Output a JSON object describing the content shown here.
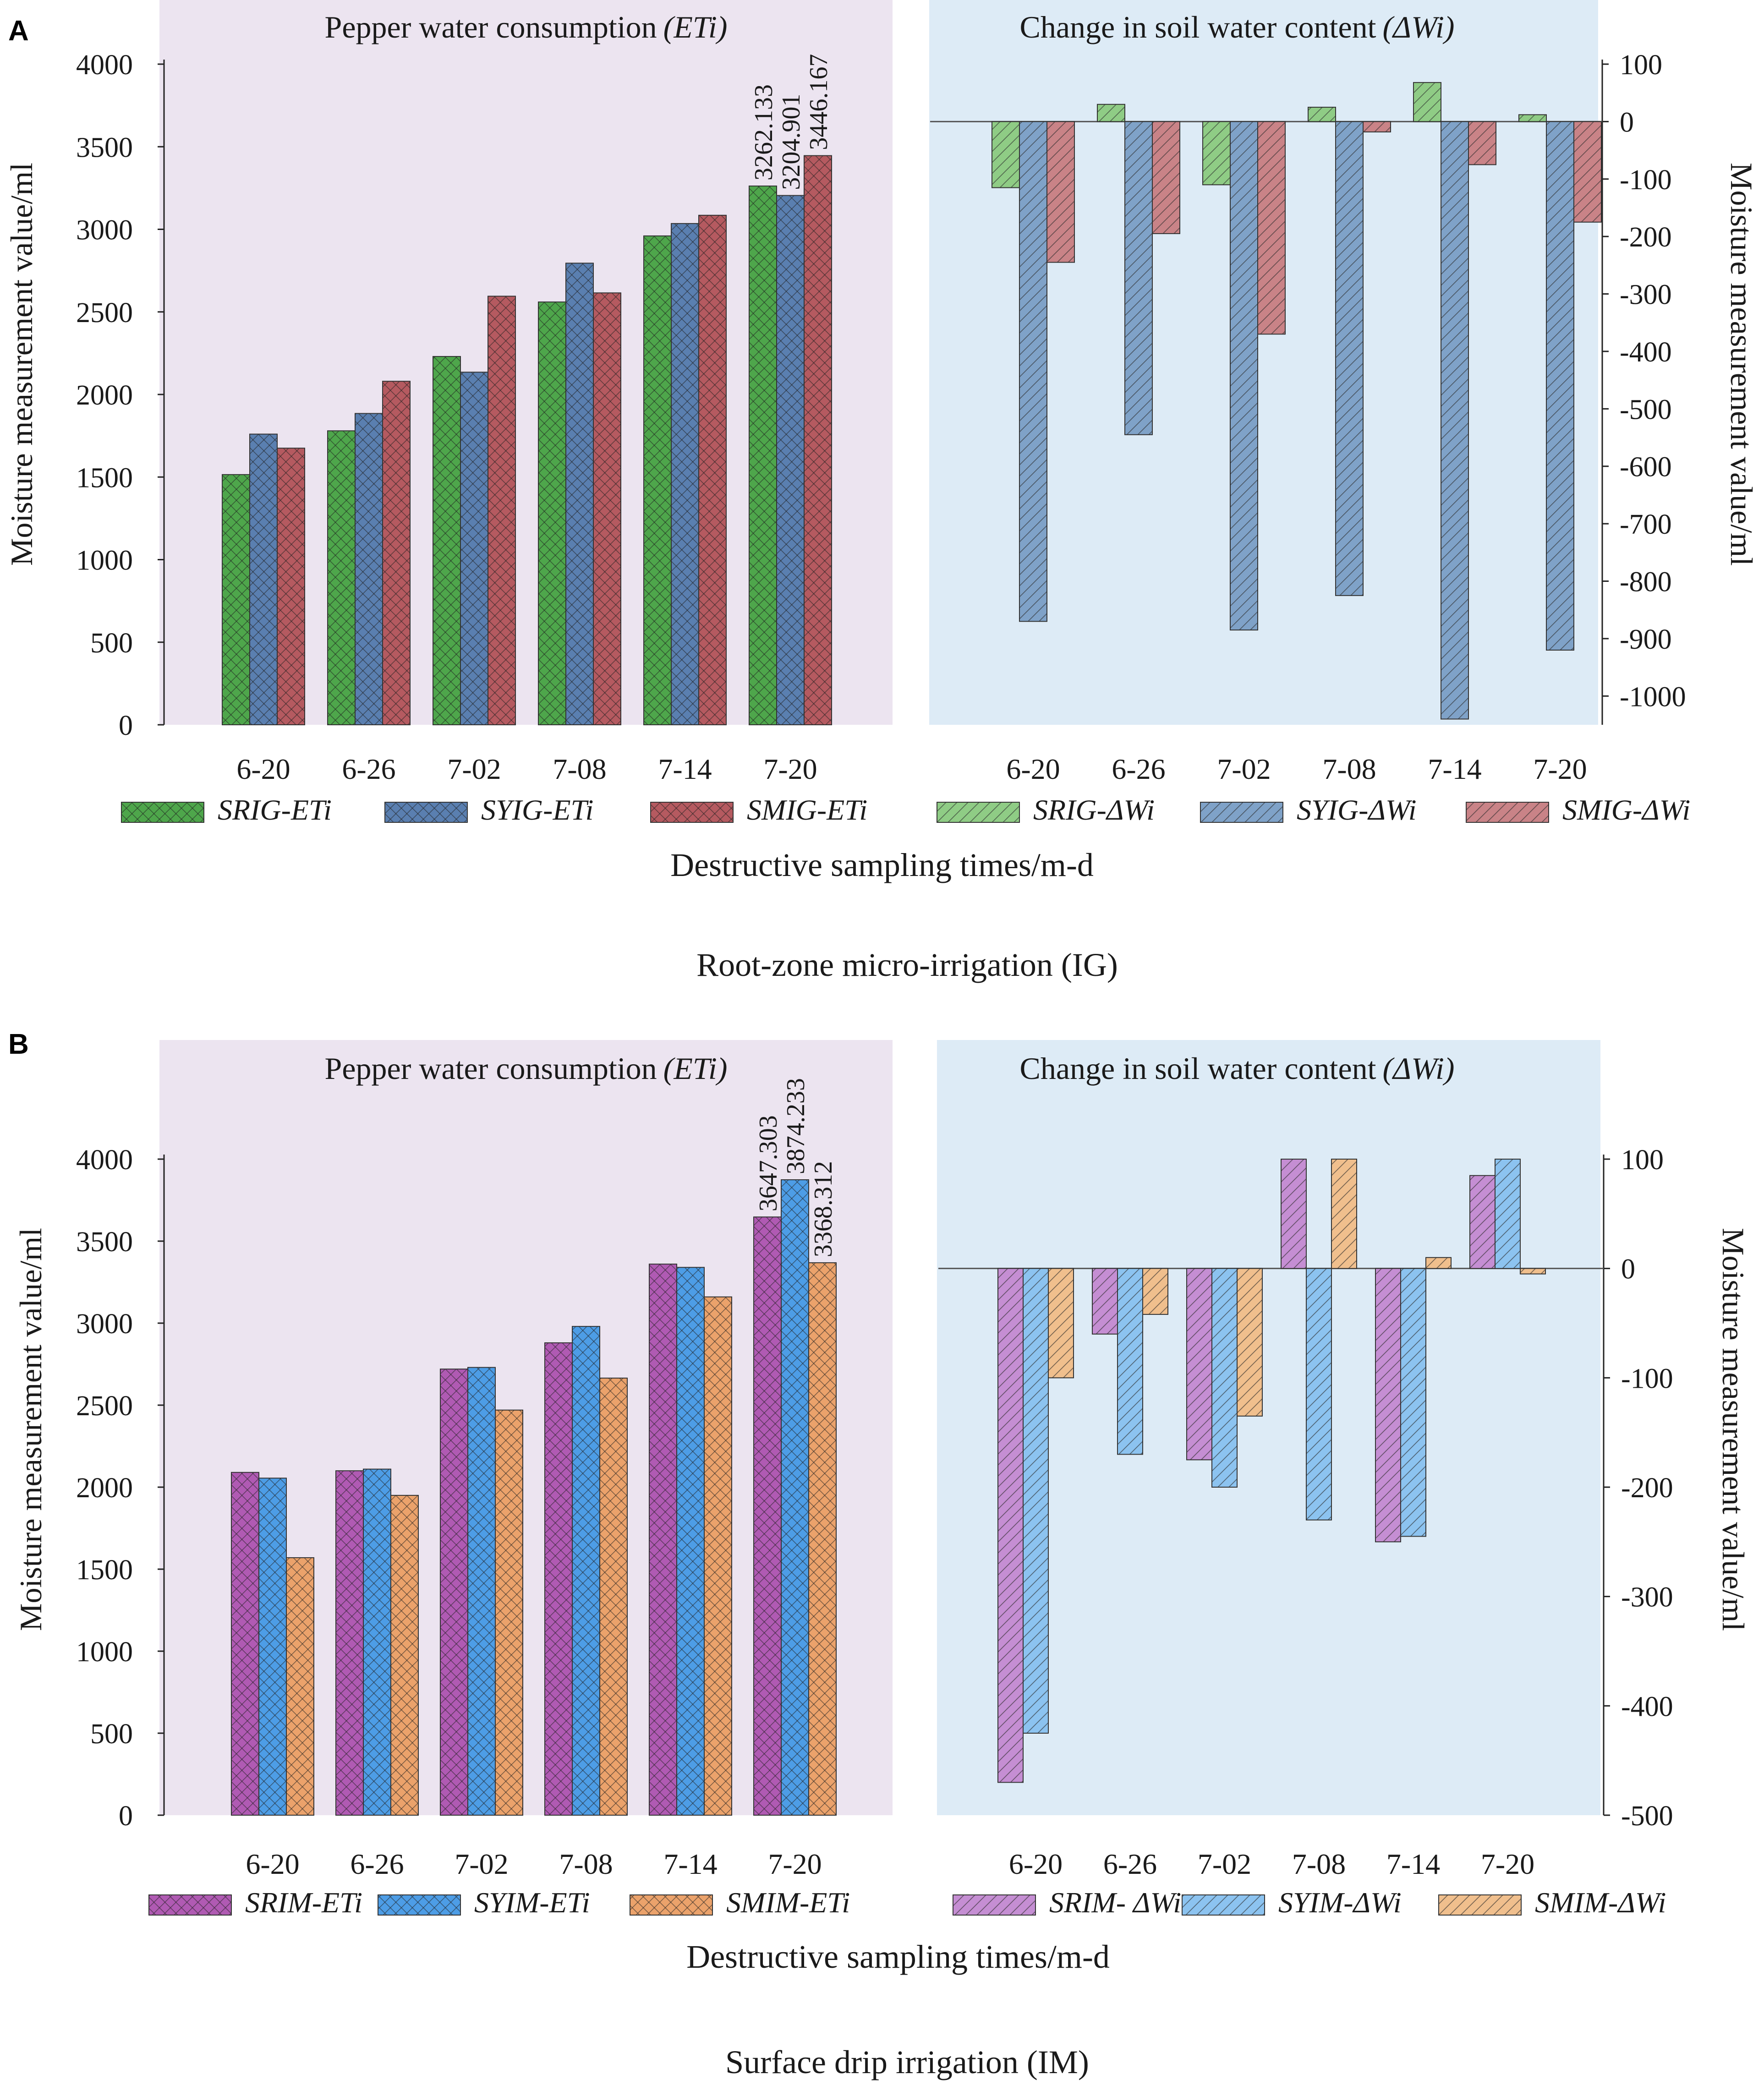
{
  "figure": {
    "panel_a": {
      "letter": "A",
      "caption": "Root-zone micro-irrigation (IG)",
      "xlabel": "Destructive sampling times/m-d",
      "left_title": "Pepper water consumption",
      "left_title_symbol": "(ETi)",
      "right_title": "Change in soil water content",
      "right_title_symbol": "(ΔWi)",
      "left_ylabel": "Moisture measurement value/ml",
      "right_ylabel": "Moisture measurement value/ml",
      "legend": [
        "SRIG-ETi",
        "SYIG-ETi",
        "SMIG-ETi",
        "SRIG-ΔWi",
        "SYIG-ΔWi",
        "SMIG-ΔWi"
      ]
    },
    "panel_b": {
      "letter": "B",
      "caption": "Surface drip irrigation (IM)",
      "xlabel": "Destructive sampling times/m-d",
      "left_title": "Pepper water consumption",
      "left_title_symbol": "(ETi)",
      "right_title": "Change in soil water content",
      "right_title_symbol": "(ΔWi)",
      "left_ylabel": "Moisture measurement value/ml",
      "right_ylabel": "Moisture measurement value/ml",
      "legend": [
        "SRIM-ETi",
        "SYIM-ETi",
        "SMIM-ETi",
        "SRIM- ΔWi",
        "SYIM-ΔWi",
        "SMIM-ΔWi"
      ]
    }
  },
  "colors": {
    "left_bg": "#ece4f0",
    "right_bg": "#ddebf6",
    "srig": "#4ea64b",
    "syig": "#5a7fb0",
    "smig": "#b55a60",
    "srig_dw": "#8fcc85",
    "syig_dw": "#7fa2c8",
    "smig_dw": "#c98387",
    "srim": "#b05ab3",
    "syim": "#4d9de6",
    "smim": "#eba26b",
    "srim_dw": "#c58ed3",
    "syim_dw": "#8cc3f0",
    "smim_dw": "#f0bf8d"
  },
  "chart_data": [
    {
      "id": "A-ETi",
      "type": "bar",
      "title": "Pepper water consumption (ETi)",
      "xlabel": "Destructive sampling times/m-d",
      "ylabel": "Moisture measurement value/ml",
      "categories": [
        "6-20",
        "6-26",
        "7-02",
        "7-08",
        "7-14",
        "7-20"
      ],
      "ylim": [
        0,
        4000
      ],
      "yticks": [
        0,
        500,
        1000,
        1500,
        2000,
        2500,
        3000,
        3500,
        4000
      ],
      "ytick_labels": [
        "0",
        "500",
        "1000",
        "1500",
        "2000",
        "2500",
        "3000",
        "3500",
        "4000"
      ],
      "series": [
        {
          "name": "SRIG-ETi",
          "values": [
            1515,
            1780,
            2230,
            2560,
            2960,
            3262.133
          ]
        },
        {
          "name": "SYIG-ETi",
          "values": [
            1760,
            1885,
            2135,
            2795,
            3035,
            3204.901
          ]
        },
        {
          "name": "SMIG-ETi",
          "values": [
            1675,
            2080,
            2595,
            2615,
            3085,
            3446.167
          ]
        }
      ],
      "annotations": [
        "3262.133",
        "3204.901",
        "3446.167"
      ]
    },
    {
      "id": "A-dWi",
      "type": "bar",
      "title": "Change in soil water content (ΔWi)",
      "ylabel": "Moisture measurement value/ml",
      "categories": [
        "6-20",
        "6-26",
        "7-02",
        "7-08",
        "7-14",
        "7-20"
      ],
      "ylim": [
        -1050,
        100
      ],
      "yticks": [
        100,
        0,
        -100,
        -200,
        -300,
        -400,
        -500,
        -600,
        -700,
        -800,
        -900,
        -1000
      ],
      "ytick_labels": [
        "100",
        "0",
        "-100",
        "-200",
        "-300",
        "-400",
        "-500",
        "-600",
        "-700",
        "-800",
        "-900",
        "-1000"
      ],
      "series": [
        {
          "name": "SRIG-ΔWi",
          "values": [
            -115,
            30,
            -110,
            25,
            68,
            12
          ]
        },
        {
          "name": "SYIG-ΔWi",
          "values": [
            -870,
            -545,
            -885,
            -825,
            -1040,
            -920
          ]
        },
        {
          "name": "SMIG-ΔWi",
          "values": [
            -245,
            -195,
            -370,
            -18,
            -75,
            -175
          ]
        }
      ]
    },
    {
      "id": "B-ETi",
      "type": "bar",
      "title": "Pepper water consumption (ETi)",
      "xlabel": "Destructive sampling times/m-d",
      "ylabel": "Moisture measurement value/ml",
      "categories": [
        "6-20",
        "6-26",
        "7-02",
        "7-08",
        "7-14",
        "7-20"
      ],
      "ylim": [
        0,
        4000
      ],
      "yticks": [
        0,
        500,
        1000,
        1500,
        2000,
        2500,
        3000,
        3500,
        4000
      ],
      "ytick_labels": [
        "0",
        "500",
        "1000",
        "1500",
        "2000",
        "2500",
        "3000",
        "3500",
        "4000"
      ],
      "series": [
        {
          "name": "SRIM-ETi",
          "values": [
            2090,
            2100,
            2720,
            2880,
            3360,
            3647.303
          ]
        },
        {
          "name": "SYIM-ETi",
          "values": [
            2055,
            2110,
            2730,
            2980,
            3340,
            3874.233
          ]
        },
        {
          "name": "SMIM-ETi",
          "values": [
            1570,
            1950,
            2470,
            2665,
            3160,
            3368.312
          ]
        }
      ],
      "annotations": [
        "3647.303",
        "3874.233",
        "3368.312"
      ]
    },
    {
      "id": "B-dWi",
      "type": "bar",
      "title": "Change in soil water content (ΔWi)",
      "ylabel": "Moisture measurement value/ml",
      "categories": [
        "6-20",
        "6-26",
        "7-02",
        "7-08",
        "7-14",
        "7-20"
      ],
      "ylim": [
        -500,
        100
      ],
      "yticks": [
        100,
        0,
        -100,
        -200,
        -300,
        -400,
        -500
      ],
      "ytick_labels": [
        "100",
        "0",
        "-100",
        "-200",
        "-300",
        "-400",
        "-500"
      ],
      "series": [
        {
          "name": "SRIM- ΔWi",
          "values": [
            -470,
            -60,
            -175,
            100,
            -250,
            85
          ]
        },
        {
          "name": "SYIM-ΔWi",
          "values": [
            -425,
            -170,
            -200,
            -230,
            -245,
            100
          ]
        },
        {
          "name": "SMIM-ΔWi",
          "values": [
            -100,
            -42,
            -135,
            100,
            10,
            -5
          ]
        }
      ]
    }
  ]
}
